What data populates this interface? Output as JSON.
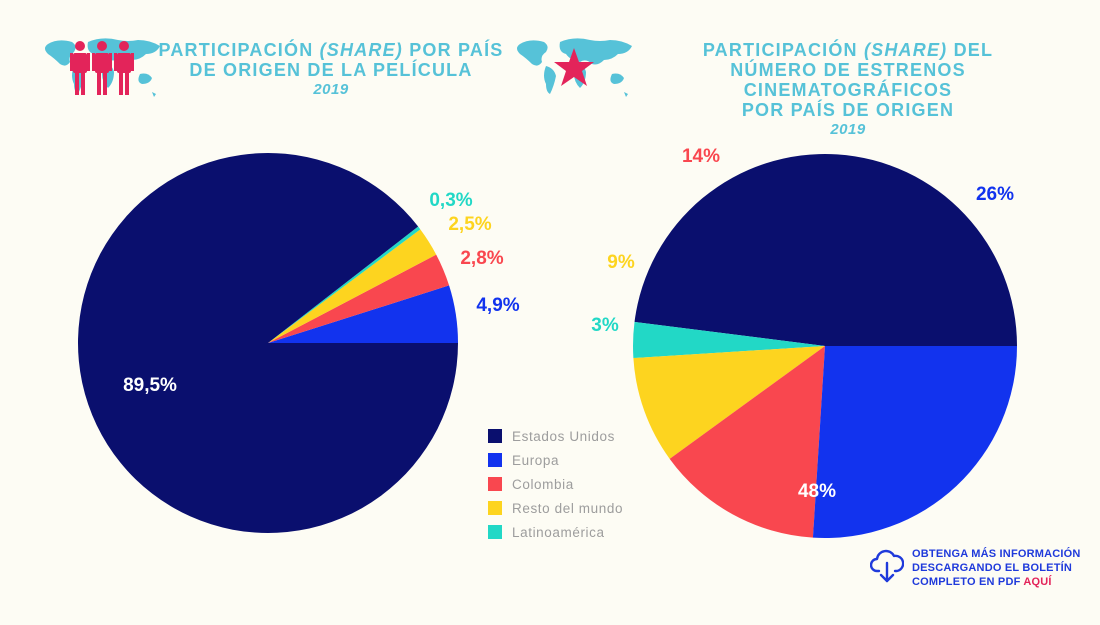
{
  "colors": {
    "estados_unidos": "#0a0f6e",
    "europa": "#1233ee",
    "colombia": "#f9474f",
    "resto": "#fdd41f",
    "latam": "#22d8c6",
    "title": "#56c2d8",
    "accent": "#e3245a"
  },
  "chart_data": [
    {
      "type": "pie",
      "title_line1": "PARTICIPACIÓN",
      "title_share": "(SHARE)",
      "title_line1_end": "POR PAÍS",
      "title_line2": "DE ORIGEN DE LA PELÍCULA",
      "year": "2019",
      "slices": [
        {
          "name": "Europa",
          "value": 4.9,
          "label": "4,9%"
        },
        {
          "name": "Colombia",
          "value": 2.8,
          "label": "2,8%"
        },
        {
          "name": "Resto del mundo",
          "value": 2.5,
          "label": "2,5%"
        },
        {
          "name": "Latinoamérica",
          "value": 0.3,
          "label": "0,3%"
        },
        {
          "name": "Estados Unidos",
          "value": 89.5,
          "label": "89,5%"
        }
      ]
    },
    {
      "type": "pie",
      "title_line1": "PARTICIPACIÓN",
      "title_share": "(SHARE)",
      "title_line1_end": "DEL",
      "title_line2": "NÚMERO DE ESTRENOS CINEMATOGRÁFICOS",
      "title_line3": "POR PAÍS DE ORIGEN",
      "year": "2019",
      "slices": [
        {
          "name": "Estados Unidos",
          "value": 48,
          "label": "48%"
        },
        {
          "name": "Latinoamérica",
          "value": 3,
          "label": "3%"
        },
        {
          "name": "Resto del mundo",
          "value": 9,
          "label": "9%"
        },
        {
          "name": "Colombia",
          "value": 14,
          "label": "14%"
        },
        {
          "name": "Europa",
          "value": 26,
          "label": "26%"
        }
      ]
    }
  ],
  "legend": [
    {
      "label": "Estados Unidos",
      "color": "#0a0f6e"
    },
    {
      "label": "Europa",
      "color": "#1233ee"
    },
    {
      "label": "Colombia",
      "color": "#f9474f"
    },
    {
      "label": "Resto del mundo",
      "color": "#fdd41f"
    },
    {
      "label": "Latinoamérica",
      "color": "#22d8c6"
    }
  ],
  "download": {
    "line1": "OBTENGA MÁS INFORMACIÓN",
    "line2": "DESCARGANDO EL BOLETÍN",
    "line3_a": "COMPLETO EN PDF",
    "line3_b": "AQUÍ",
    "icon": "cloud-download-icon"
  },
  "icons": {
    "left": "world-map-people-icon",
    "right": "world-map-star-icon"
  }
}
